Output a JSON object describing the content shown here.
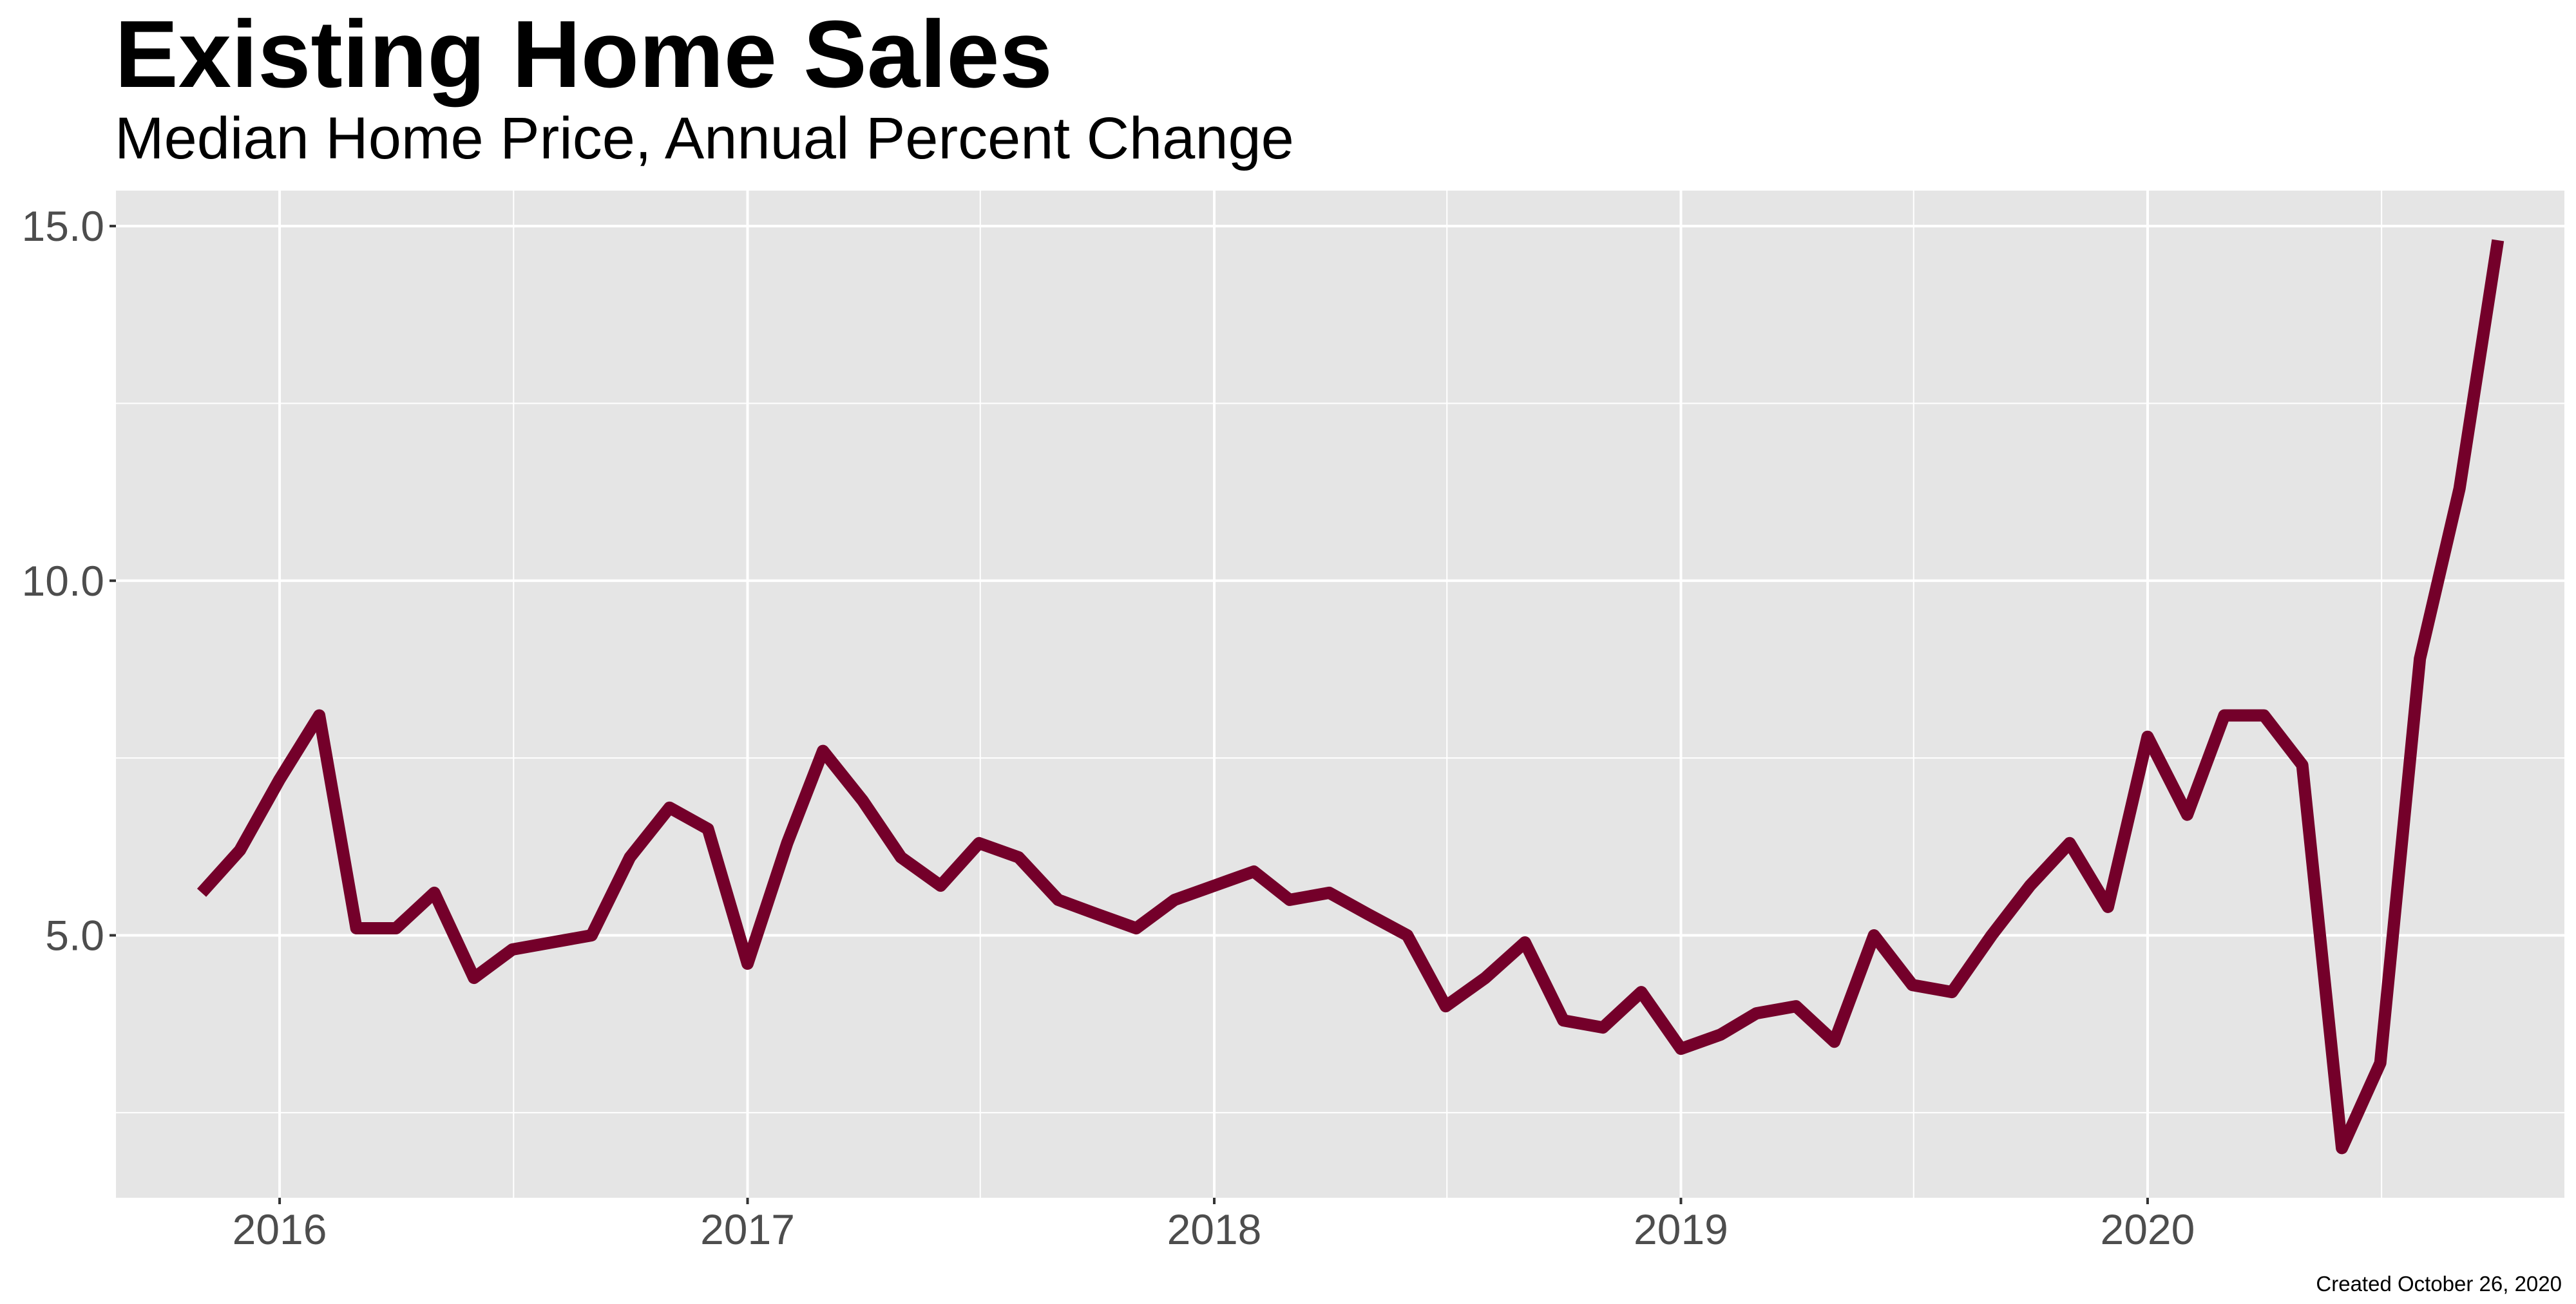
{
  "title": "Existing Home Sales",
  "subtitle": "Median Home Price, Annual Percent Change",
  "caption": "Created October 26, 2020",
  "colors": {
    "line": "#74002a",
    "panel": "#e5e5e5",
    "grid": "#ffffff",
    "tick_text": "#4d4d4d"
  },
  "chart_data": {
    "type": "line",
    "title": "Existing Home Sales",
    "subtitle": "Median Home Price, Annual Percent Change",
    "xlabel": "",
    "ylabel": "",
    "x_ticks": [
      "2016",
      "2017",
      "2018",
      "2019",
      "2020"
    ],
    "y_ticks": [
      "5.0",
      "10.0",
      "15.0"
    ],
    "ylim": [
      1.3,
      15.5
    ],
    "xlim": [
      "2015-08-26",
      "2020-11-22"
    ],
    "grid": true,
    "legend": "none",
    "x": [
      "2015-11",
      "2015-12",
      "2016-01",
      "2016-02",
      "2016-03",
      "2016-04",
      "2016-05",
      "2016-06",
      "2016-07",
      "2016-08",
      "2016-09",
      "2016-10",
      "2016-11",
      "2016-12",
      "2017-01",
      "2017-02",
      "2017-03",
      "2017-04",
      "2017-05",
      "2017-06",
      "2017-07",
      "2017-08",
      "2017-09",
      "2017-10",
      "2017-11",
      "2017-12",
      "2018-01",
      "2018-02",
      "2018-03",
      "2018-04",
      "2018-05",
      "2018-06",
      "2018-07",
      "2018-08",
      "2018-09",
      "2018-10",
      "2018-11",
      "2018-12",
      "2019-01",
      "2019-02",
      "2019-03",
      "2019-04",
      "2019-05",
      "2019-06",
      "2019-07",
      "2019-08",
      "2019-09",
      "2019-10",
      "2019-11",
      "2019-12",
      "2020-01",
      "2020-02",
      "2020-03",
      "2020-04",
      "2020-05",
      "2020-06",
      "2020-07",
      "2020-08",
      "2020-09",
      "2020-10"
    ],
    "series": [
      {
        "values": [
          5.6,
          6.2,
          7.2,
          8.1,
          5.1,
          5.1,
          5.6,
          4.4,
          4.8,
          4.9,
          5.0,
          6.1,
          6.8,
          6.5,
          4.6,
          6.3,
          7.6,
          6.9,
          6.1,
          5.7,
          6.3,
          6.1,
          5.5,
          5.3,
          5.1,
          5.5,
          5.7,
          5.9,
          5.5,
          5.6,
          5.3,
          5.0,
          4.0,
          4.4,
          4.9,
          3.8,
          3.7,
          4.2,
          3.4,
          3.6,
          3.9,
          4.0,
          3.5,
          5.0,
          4.3,
          4.2,
          5.0,
          5.7,
          6.3,
          5.4,
          7.8,
          6.7,
          8.1,
          8.1,
          7.4,
          2.0,
          3.2,
          8.9,
          11.3,
          14.8
        ]
      }
    ]
  }
}
